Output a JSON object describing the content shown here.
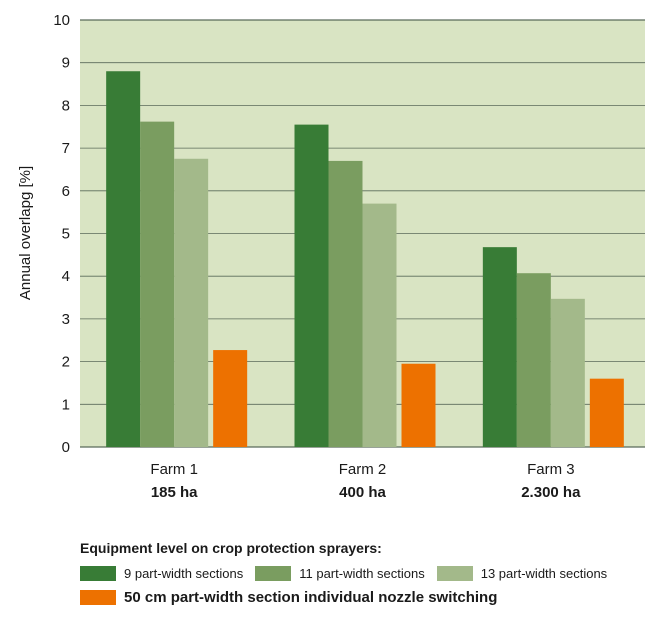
{
  "chart_data": {
    "type": "bar",
    "ylabel": "Annual overlapg [%]",
    "ylim": [
      0,
      10
    ],
    "yticks": [
      0,
      1,
      2,
      3,
      4,
      5,
      6,
      7,
      8,
      9,
      10
    ],
    "grid": true,
    "categories": [
      {
        "name": "Farm 1",
        "sub": "185 ha"
      },
      {
        "name": "Farm 2",
        "sub": "400 ha"
      },
      {
        "name": "Farm 3",
        "sub": "2.300 ha"
      }
    ],
    "series": [
      {
        "name": "9 part-width sections",
        "color": "#387c36",
        "values": [
          8.8,
          7.55,
          4.68
        ]
      },
      {
        "name": "11 part-width sections",
        "color": "#7a9d60",
        "values": [
          7.62,
          6.7,
          4.07
        ]
      },
      {
        "name": "13 part-width sections",
        "color": "#a3b98a",
        "values": [
          6.75,
          5.7,
          3.47
        ]
      },
      {
        "name": "50 cm part-width section individual nozzle switching",
        "color": "#ed7100",
        "values": [
          2.27,
          1.95,
          1.6
        ]
      }
    ],
    "legend_title": "Equipment level on crop protection sprayers:",
    "legend_position": "bottom"
  },
  "colors": {
    "plot_background": "#d9e4c3",
    "gridline": "#5a6a5a"
  }
}
